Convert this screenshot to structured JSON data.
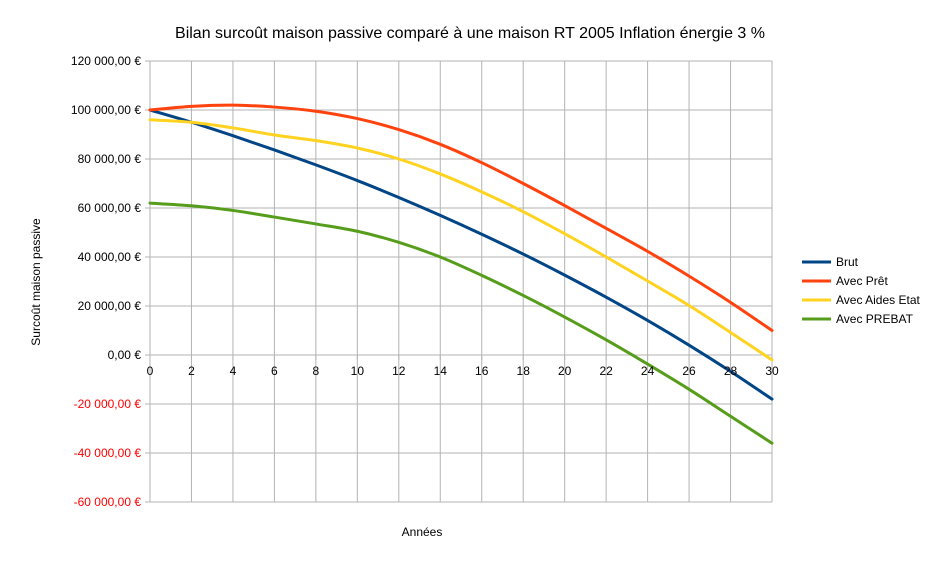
{
  "chart_data": {
    "type": "line",
    "title": "Bilan surcoût maison passive comparé à une maison RT 2005 Inflation énergie 3 %",
    "xlabel": "Années",
    "ylabel": "Surcoût maison passive",
    "xlim": [
      0,
      30
    ],
    "ylim": [
      -60000,
      120000
    ],
    "x_ticks": [
      0,
      2,
      4,
      6,
      8,
      10,
      12,
      14,
      16,
      18,
      20,
      22,
      24,
      26,
      28,
      30
    ],
    "y_ticks": [
      {
        "value": 120000,
        "label": "120 000,00 €"
      },
      {
        "value": 100000,
        "label": "100 000,00 €"
      },
      {
        "value": 80000,
        "label": "80 000,00 €"
      },
      {
        "value": 60000,
        "label": "60 000,00 €"
      },
      {
        "value": 40000,
        "label": "40 000,00 €"
      },
      {
        "value": 20000,
        "label": "20 000,00 €"
      },
      {
        "value": 0,
        "label": "0,00 €"
      },
      {
        "value": -20000,
        "label": "-20 000,00 €"
      },
      {
        "value": -40000,
        "label": "-40 000,00 €"
      },
      {
        "value": -60000,
        "label": "-60 000,00 €"
      }
    ],
    "negative_tick_color": "#ff0000",
    "positive_tick_color": "#000000",
    "grid": true,
    "legend_position": "right",
    "series": [
      {
        "name": "Brut",
        "color": "#004586",
        "x": [
          0,
          2,
          4,
          6,
          8,
          10,
          12,
          14,
          16,
          18,
          20,
          22,
          24,
          26,
          28,
          30
        ],
        "values": [
          100000,
          95000,
          89500,
          83700,
          77600,
          71200,
          64300,
          57000,
          49300,
          41200,
          32600,
          23600,
          14100,
          4000,
          -6700,
          -18000
        ]
      },
      {
        "name": "Avec Prêt",
        "color": "#ff420e",
        "x": [
          0,
          2,
          4,
          6,
          8,
          10,
          12,
          14,
          16,
          18,
          20,
          22,
          24,
          26,
          28,
          30
        ],
        "values": [
          100000,
          101500,
          102000,
          101200,
          99500,
          96500,
          92000,
          86000,
          78500,
          70000,
          61000,
          51700,
          42300,
          32200,
          21500,
          10000
        ]
      },
      {
        "name": "Avec Aides Etat",
        "color": "#ffd320",
        "x": [
          0,
          2,
          4,
          6,
          8,
          10,
          12,
          14,
          16,
          18,
          20,
          22,
          24,
          26,
          28,
          30
        ],
        "values": [
          96000,
          95000,
          92700,
          89800,
          87500,
          84500,
          80000,
          73900,
          66600,
          58500,
          49500,
          40000,
          30200,
          20200,
          9200,
          -2000
        ]
      },
      {
        "name": "Avec PREBAT",
        "color": "#579d1c",
        "x": [
          0,
          2,
          4,
          6,
          8,
          10,
          12,
          14,
          16,
          18,
          20,
          22,
          24,
          26,
          28,
          30
        ],
        "values": [
          62000,
          60900,
          59000,
          56300,
          53500,
          50500,
          46000,
          40000,
          32500,
          24300,
          15500,
          6200,
          -3700,
          -14000,
          -25000,
          -36000
        ]
      }
    ]
  }
}
